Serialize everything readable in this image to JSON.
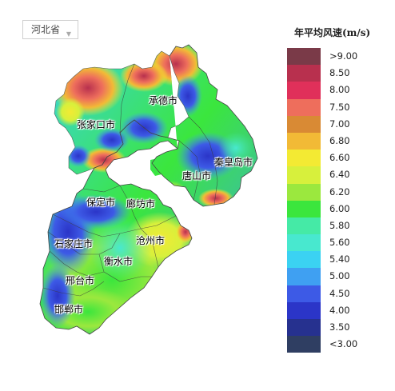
{
  "region_selector": {
    "value": "河北省",
    "caret": "▼"
  },
  "legend": {
    "title": "年平均风速(m/s)",
    "items": [
      {
        "label": ">9.00",
        "color": "#7a3a48"
      },
      {
        "label": "8.50",
        "color": "#b8304e"
      },
      {
        "label": "8.00",
        "color": "#e0305a"
      },
      {
        "label": "7.50",
        "color": "#ee6e5c"
      },
      {
        "label": "7.00",
        "color": "#d98a34"
      },
      {
        "label": "6.80",
        "color": "#f2ba36"
      },
      {
        "label": "6.60",
        "color": "#f3ea33"
      },
      {
        "label": "6.40",
        "color": "#d7f03c"
      },
      {
        "label": "6.20",
        "color": "#9be83e"
      },
      {
        "label": "6.00",
        "color": "#3be63d"
      },
      {
        "label": "5.80",
        "color": "#45eaa6"
      },
      {
        "label": "5.60",
        "color": "#48e8cf"
      },
      {
        "label": "5.40",
        "color": "#3bd2f2"
      },
      {
        "label": "5.00",
        "color": "#3fa0f2"
      },
      {
        "label": "4.50",
        "color": "#3d5ae6"
      },
      {
        "label": "4.00",
        "color": "#2b35c8"
      },
      {
        "label": "3.50",
        "color": "#26318f"
      },
      {
        "label": "<3.00",
        "color": "#2f3e62"
      }
    ]
  },
  "cities": {
    "chengde": "承德市",
    "zhangjiakou": "张家口市",
    "qinhuangdao": "秦皇岛市",
    "tangshan": "唐山市",
    "baoding": "保定市",
    "langfang": "廊坊市",
    "cangzhou": "沧州市",
    "shijiazhuang": "石家庄市",
    "hengshui": "衡水市",
    "xingtai": "邢台市",
    "handan": "邯郸市"
  }
}
